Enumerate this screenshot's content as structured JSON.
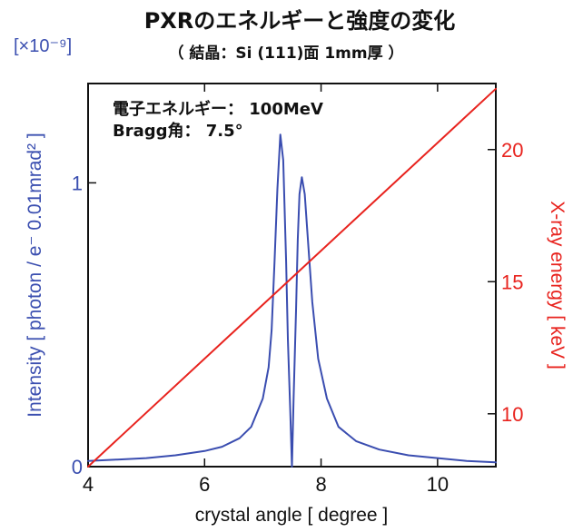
{
  "chart_data": {
    "type": "line",
    "title": "PXRのエネルギーと強度の変化",
    "subtitle": "（ 結晶：Si (111)面 1mm厚 ）",
    "annotations": [
      "電子エネルギー： 100MeV",
      "Bragg角： 7.5°"
    ],
    "xlabel": "crystal angle [ degree ]",
    "ylabel_left": "Intensity [ photon / e⁻ 0.01mrad² ]",
    "ylabel_right": "X-ray energy [ keV ]",
    "left_axis_scale": "[×10⁻⁹]",
    "xlim": [
      4,
      11
    ],
    "ylim_left": [
      0,
      1.35
    ],
    "ylim_right": [
      8,
      22.5
    ],
    "x_ticks": [
      4,
      6,
      8,
      10
    ],
    "y_ticks_left": [
      0,
      1
    ],
    "y_ticks_right": [
      10,
      15,
      20
    ],
    "colors": {
      "intensity": "#3a4db0",
      "energy": "#e8231e"
    },
    "series": [
      {
        "axis": "left",
        "x": [
          4.0,
          4.5,
          5.0,
          5.5,
          6.0,
          6.3,
          6.6,
          6.8,
          7.0,
          7.1,
          7.15,
          7.2,
          7.25,
          7.3,
          7.35,
          7.4,
          7.43,
          7.47,
          7.5,
          7.53,
          7.57,
          7.6,
          7.63,
          7.67,
          7.72,
          7.78,
          7.85,
          7.95,
          8.1,
          8.3,
          8.6,
          9.0,
          9.5,
          10.0,
          10.5,
          11.0
        ],
        "y": [
          0.02,
          0.025,
          0.03,
          0.04,
          0.055,
          0.07,
          0.1,
          0.14,
          0.24,
          0.35,
          0.48,
          0.72,
          0.98,
          1.17,
          1.08,
          0.72,
          0.45,
          0.2,
          0.0,
          0.25,
          0.55,
          0.8,
          0.96,
          1.02,
          0.96,
          0.78,
          0.58,
          0.38,
          0.24,
          0.14,
          0.09,
          0.06,
          0.04,
          0.03,
          0.02,
          0.015
        ]
      },
      {
        "axis": "right",
        "x": [
          4.0,
          11.0
        ],
        "y": [
          8.0,
          22.3
        ]
      }
    ]
  }
}
